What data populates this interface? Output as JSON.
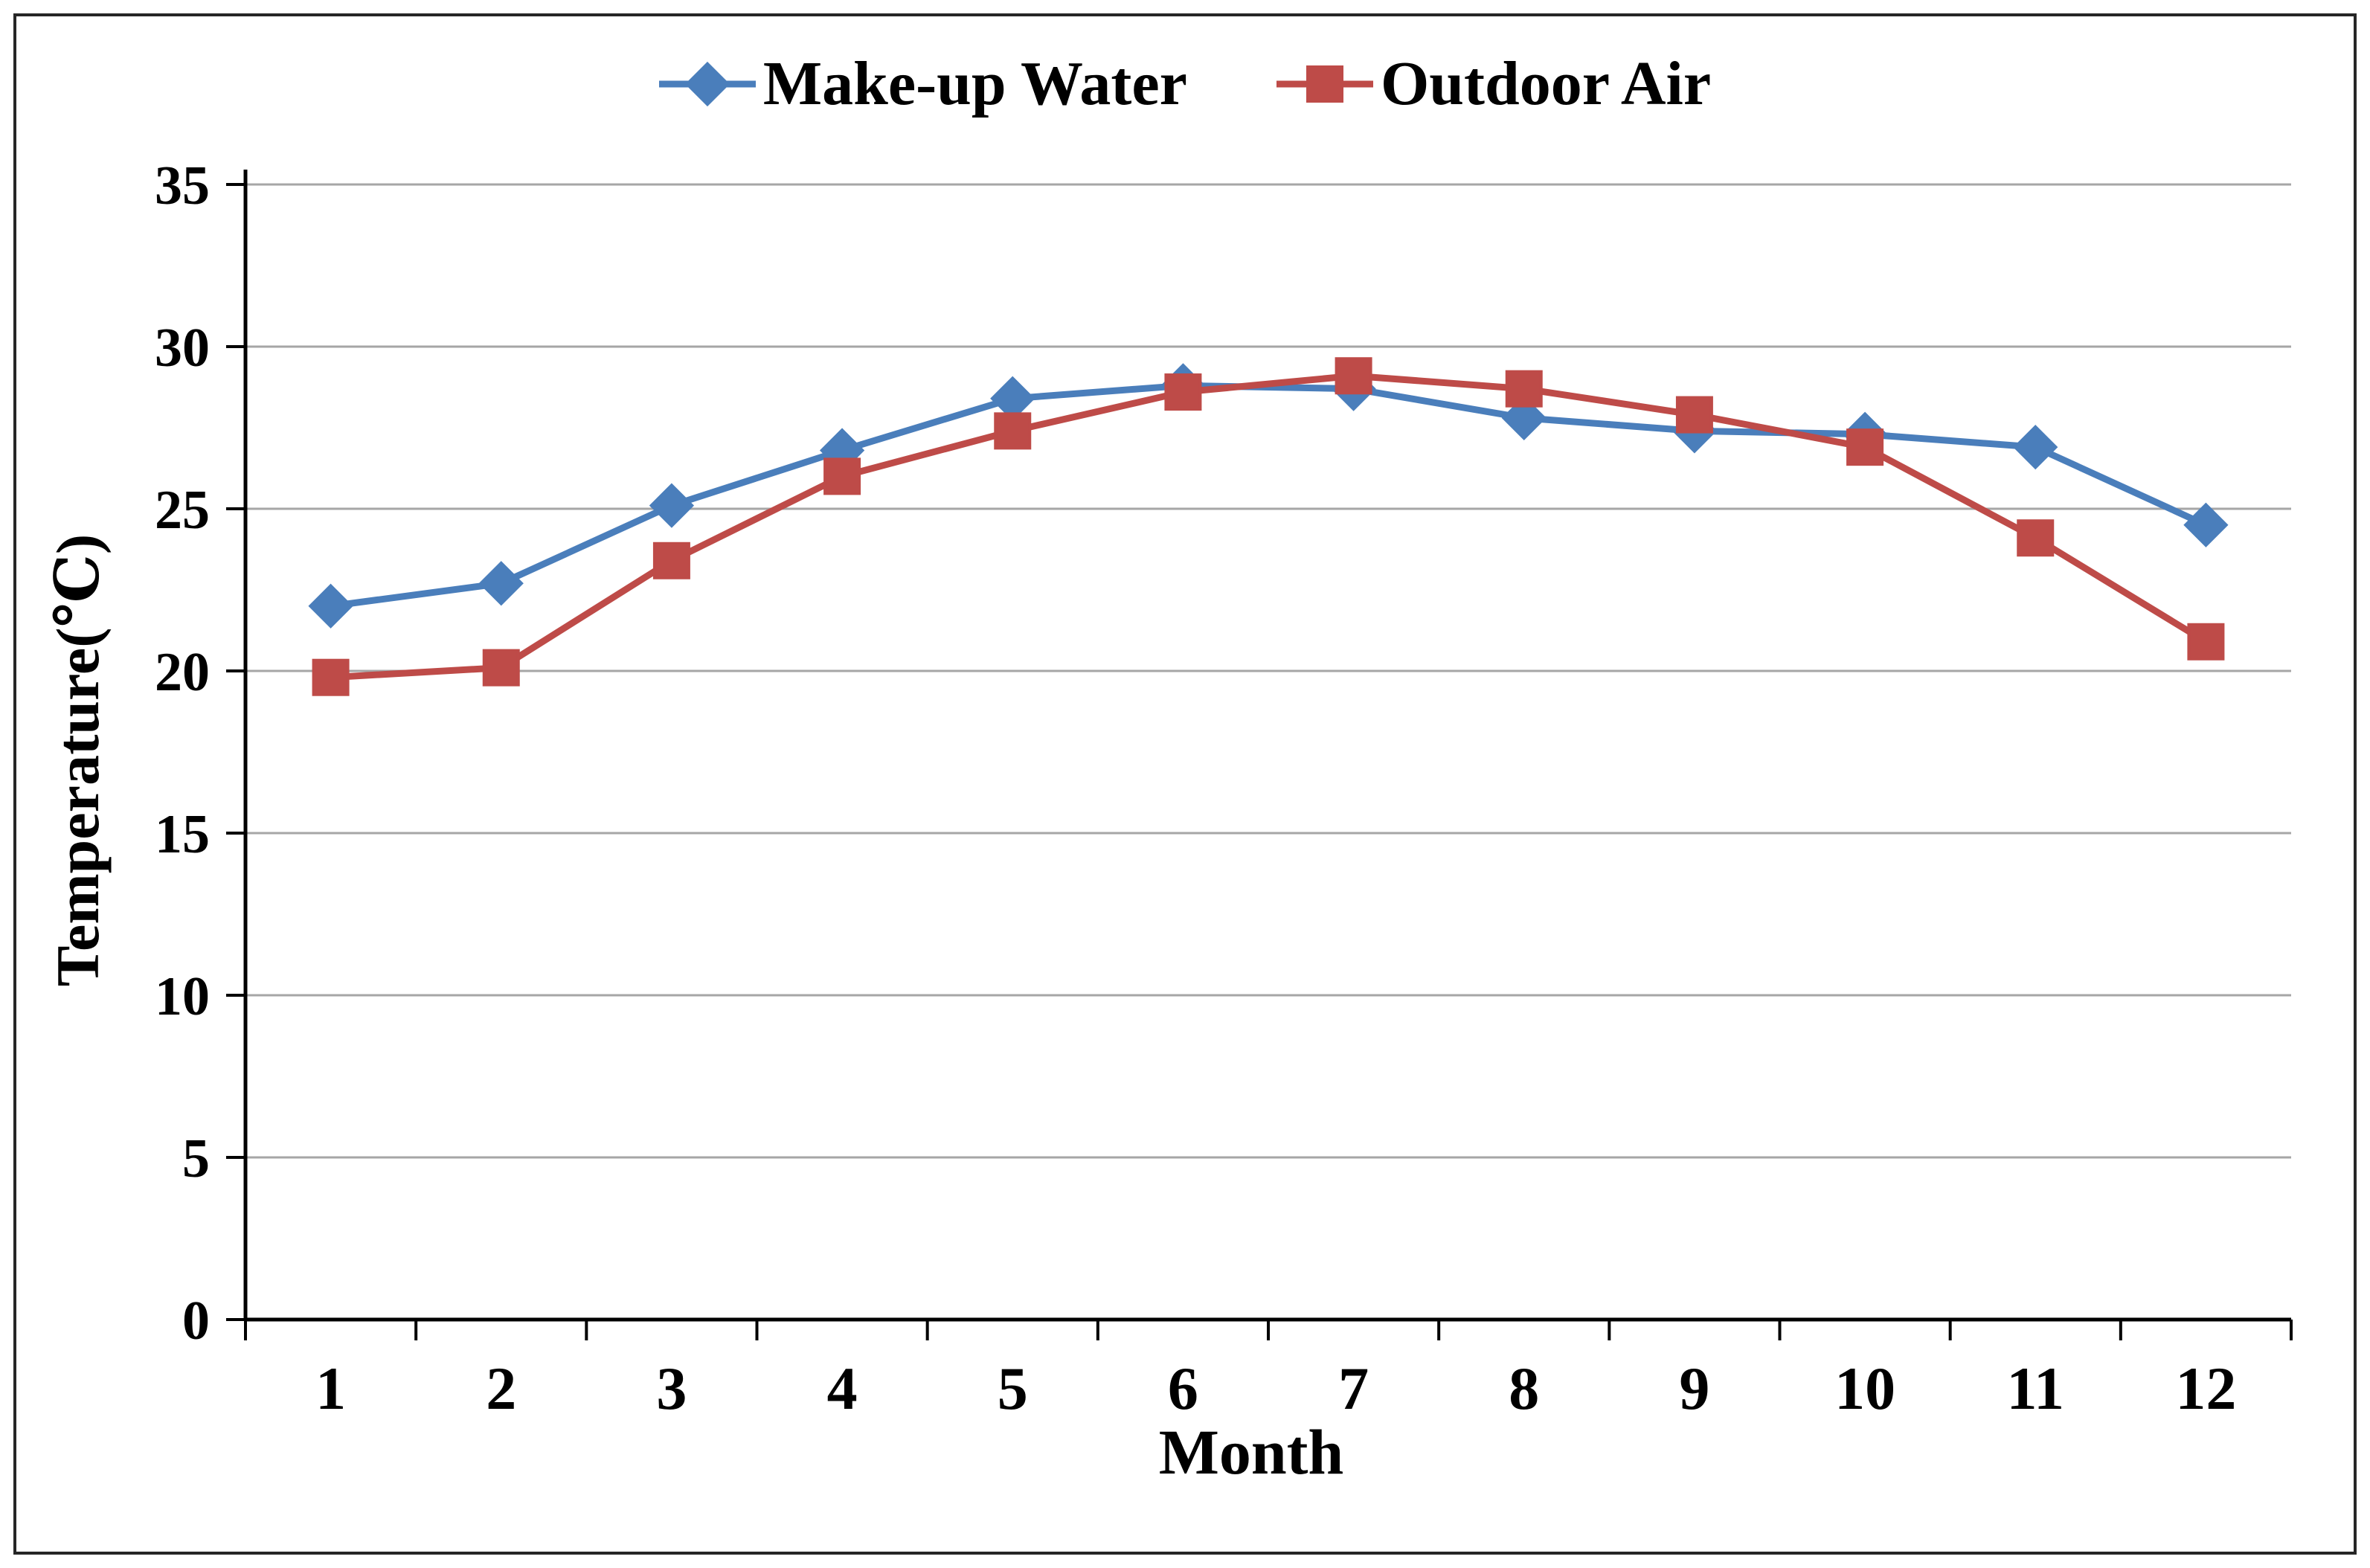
{
  "chart_data": {
    "type": "line",
    "title": "",
    "xlabel": "Month",
    "ylabel": "Temperature(℃)",
    "x": [
      1,
      2,
      3,
      4,
      5,
      6,
      7,
      8,
      9,
      10,
      11,
      12
    ],
    "series": [
      {
        "name": "Make-up Water",
        "color": "#4A7EBB",
        "marker": "diamond",
        "values": [
          22.0,
          22.7,
          25.1,
          26.8,
          28.4,
          28.8,
          28.7,
          27.8,
          27.4,
          27.3,
          26.9,
          24.5
        ]
      },
      {
        "name": "Outdoor Air",
        "color": "#BE4B48",
        "marker": "square",
        "values": [
          19.8,
          20.1,
          23.4,
          26.0,
          27.4,
          28.6,
          29.1,
          28.7,
          27.9,
          26.9,
          24.1,
          20.9
        ]
      }
    ],
    "ylim": [
      0,
      35
    ],
    "ytick_step": 5,
    "grid": true,
    "legend_position": "top",
    "axis_color": "#000000",
    "gridline_color": "#a6a6a6"
  }
}
